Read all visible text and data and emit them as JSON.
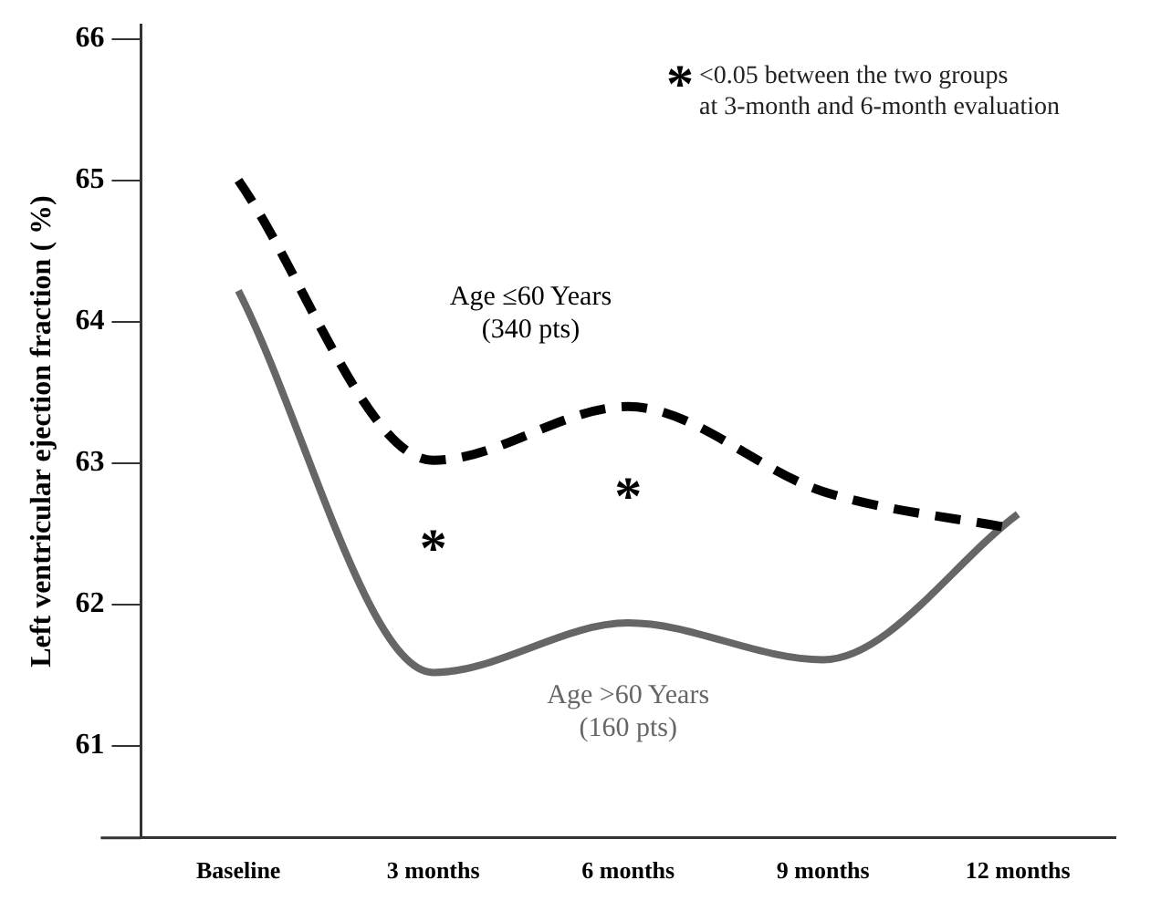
{
  "chart_data": {
    "type": "line",
    "ylabel": "Left ventricular ejection fraction ( %)",
    "categories": [
      "Baseline",
      "3 months",
      "6 months",
      "9 months",
      "12 months"
    ],
    "series": [
      {
        "name": "Age ≤60 Years\n(340 pts)",
        "color": "#000000",
        "line_style": "dashed",
        "values": [
          65.0,
          63.02,
          63.4,
          62.8,
          62.53
        ]
      },
      {
        "name": "Age >60 Years\n(160 pts)",
        "color": "#666666",
        "line_style": "solid",
        "values": [
          64.22,
          61.52,
          61.87,
          61.61,
          62.64
        ]
      }
    ],
    "ylim": [
      60.35,
      66.1
    ],
    "yticks": [
      61,
      62,
      63,
      64,
      65,
      66
    ],
    "grid": false,
    "legend": false,
    "marker": "none",
    "annotations": [
      "*",
      "*",
      "*<0.05 between the two groups\nat 3-month and 6-month evaluation"
    ]
  }
}
